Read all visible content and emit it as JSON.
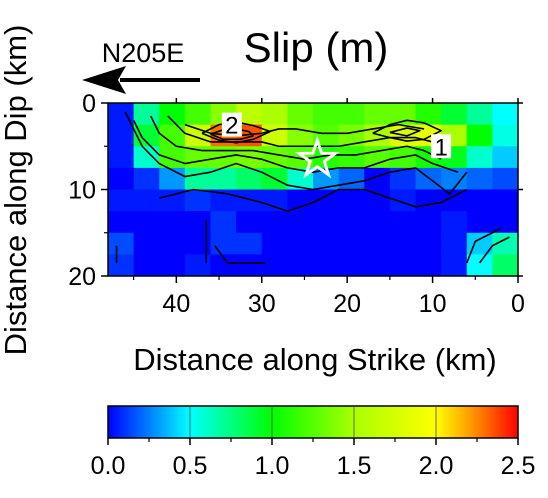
{
  "chart_data": {
    "type": "heatmap",
    "title": "Slip (m)",
    "direction_label": "N205E",
    "xlabel": "Distance along Strike (km)",
    "ylabel": "Distance along Dip (km)",
    "xlim": [
      48,
      0
    ],
    "ylim": [
      0,
      20
    ],
    "xticks": [
      40,
      30,
      20,
      10,
      0
    ],
    "yticks": [
      0,
      10,
      20
    ],
    "colorbar": {
      "label_values": [
        "0.0",
        "0.5",
        "1.0",
        "1.5",
        "2.0",
        "2.5"
      ],
      "range": [
        0,
        2.5
      ]
    },
    "annotations": [
      {
        "text": "2",
        "strike_km": 33.5,
        "dip_km": 2.5
      },
      {
        "text": "1",
        "strike_km": 9,
        "dip_km": 5
      }
    ],
    "hypocenter": {
      "strike_km": 23.5,
      "dip_km": 6.5
    },
    "grid": {
      "strike_edges_km": [
        48,
        45,
        42,
        39,
        36,
        33,
        30,
        27,
        24,
        21,
        18,
        15,
        12,
        9,
        6,
        3,
        0
      ],
      "dip_edges_km": [
        0,
        2.5,
        5,
        7.5,
        10,
        12.5,
        15,
        17.5,
        20
      ],
      "slip_m": [
        [
          0.05,
          0.7,
          1.0,
          1.2,
          1.4,
          1.6,
          1.5,
          1.3,
          1.2,
          1.2,
          1.3,
          1.3,
          1.1,
          0.9,
          0.7,
          0.5
        ],
        [
          0.05,
          0.9,
          1.2,
          1.7,
          2.3,
          2.35,
          1.7,
          1.4,
          1.25,
          1.35,
          1.5,
          1.8,
          1.85,
          1.5,
          1.0,
          0.55
        ],
        [
          0.05,
          0.6,
          1.2,
          1.3,
          1.3,
          1.35,
          1.3,
          1.25,
          1.1,
          1.15,
          1.25,
          1.2,
          1.05,
          0.95,
          0.6,
          0.4
        ],
        [
          0.0,
          0.1,
          0.3,
          0.7,
          0.7,
          0.8,
          0.9,
          0.6,
          0.3,
          0.2,
          0.0,
          0.1,
          0.2,
          0.25,
          0.2,
          0.15
        ],
        [
          0.05,
          0.05,
          0.05,
          0.1,
          0.05,
          0.05,
          0.05,
          0.0,
          0.0,
          0.0,
          0.0,
          0.05,
          0.0,
          0.0,
          0.0,
          0.0
        ],
        [
          0.0,
          0.0,
          0.0,
          0.0,
          0.1,
          0.0,
          0.0,
          0.0,
          0.0,
          0.0,
          0.0,
          0.0,
          0.0,
          0.05,
          0.0,
          0.0
        ],
        [
          0.15,
          0.0,
          0.0,
          0.0,
          0.1,
          0.1,
          0.0,
          0.0,
          0.0,
          0.0,
          0.0,
          0.0,
          0.0,
          0.05,
          0.4,
          0.65
        ],
        [
          0.1,
          0.0,
          0.0,
          0.05,
          0.0,
          0.0,
          0.0,
          0.0,
          0.0,
          0.0,
          0.0,
          0.0,
          0.0,
          0.05,
          0.5,
          0.8
        ]
      ]
    },
    "contours_km": [
      [
        [
          46,
          1
        ],
        [
          45,
          3
        ],
        [
          44,
          5
        ],
        [
          42,
          7
        ],
        [
          39,
          8.5
        ],
        [
          36,
          8
        ],
        [
          33,
          7
        ],
        [
          30,
          8
        ],
        [
          27,
          9.5
        ],
        [
          24,
          10
        ],
        [
          21,
          9.5
        ],
        [
          18,
          9
        ],
        [
          15,
          8
        ],
        [
          12,
          7.5
        ],
        [
          10,
          9
        ],
        [
          8,
          10.5
        ],
        [
          6,
          8
        ]
      ],
      [
        [
          45,
          2
        ],
        [
          44,
          4
        ],
        [
          42,
          6
        ],
        [
          39,
          7
        ],
        [
          36,
          6.5
        ],
        [
          33,
          6
        ],
        [
          30,
          6.5
        ],
        [
          27,
          7.5
        ],
        [
          24,
          8
        ],
        [
          21,
          7.5
        ],
        [
          18,
          7.5
        ],
        [
          15,
          6.5
        ],
        [
          12,
          6
        ],
        [
          10,
          7
        ],
        [
          7,
          8
        ]
      ],
      [
        [
          43,
          1.5
        ],
        [
          42,
          3.5
        ],
        [
          40,
          5
        ],
        [
          37,
          5.5
        ],
        [
          34,
          5.5
        ],
        [
          31,
          5.5
        ],
        [
          28,
          6
        ],
        [
          25,
          6.5
        ],
        [
          22,
          6
        ],
        [
          19,
          6
        ],
        [
          16,
          5.5
        ],
        [
          13,
          5
        ],
        [
          11,
          5.5
        ],
        [
          9,
          6.5
        ]
      ],
      [
        [
          41,
          1.5
        ],
        [
          39,
          3.5
        ],
        [
          36,
          4.5
        ],
        [
          33,
          4.5
        ],
        [
          30,
          4.5
        ],
        [
          28,
          5
        ],
        [
          26,
          5
        ],
        [
          24,
          5
        ],
        [
          21,
          5
        ],
        [
          18,
          4.5
        ],
        [
          15,
          4
        ],
        [
          12,
          4
        ],
        [
          10,
          4.5
        ]
      ],
      [
        [
          39,
          2.5
        ],
        [
          36,
          3.5
        ],
        [
          33,
          3.8
        ],
        [
          30,
          3.5
        ],
        [
          28,
          3
        ],
        [
          26,
          3
        ],
        [
          23,
          3.5
        ],
        [
          20,
          3.5
        ],
        [
          17,
          3
        ],
        [
          14,
          2.5
        ],
        [
          11,
          3
        ]
      ],
      [
        [
          37,
          3.5
        ],
        [
          35,
          2.5
        ],
        [
          33,
          2.2
        ],
        [
          31,
          2.6
        ],
        [
          29,
          3.3
        ],
        [
          31,
          4.2
        ],
        [
          33,
          4.6
        ],
        [
          35,
          4.3
        ],
        [
          37,
          3.5
        ]
      ],
      [
        [
          36,
          3.6
        ],
        [
          34.5,
          3.1
        ],
        [
          33,
          3.0
        ],
        [
          31.5,
          3.3
        ],
        [
          31,
          3.8
        ],
        [
          32.5,
          4.2
        ],
        [
          34.5,
          4.2
        ],
        [
          36,
          3.6
        ]
      ],
      [
        [
          17,
          3.5
        ],
        [
          15,
          2.5
        ],
        [
          13,
          2.0
        ],
        [
          11,
          2.3
        ],
        [
          9,
          3.2
        ],
        [
          11,
          4.2
        ],
        [
          13,
          4.4
        ],
        [
          15,
          4.0
        ],
        [
          17,
          3.5
        ]
      ],
      [
        [
          15,
          3.4
        ],
        [
          13,
          2.9
        ],
        [
          11.5,
          3.2
        ],
        [
          13,
          3.8
        ],
        [
          15,
          3.4
        ]
      ],
      [
        [
          42,
          11
        ],
        [
          38,
          10
        ],
        [
          34,
          10.5
        ],
        [
          30,
          11.5
        ],
        [
          27,
          12.5
        ],
        [
          24,
          11.5
        ],
        [
          21,
          10
        ],
        [
          18,
          10
        ],
        [
          15,
          11
        ],
        [
          12,
          12
        ],
        [
          9,
          11.5
        ],
        [
          6,
          10
        ]
      ],
      [
        [
          36.5,
          13.5
        ],
        [
          36.5,
          18.5
        ]
      ],
      [
        [
          35.5,
          16.5
        ],
        [
          34,
          18.5
        ],
        [
          29.5,
          18.5
        ]
      ],
      [
        [
          47,
          16.5
        ],
        [
          47,
          18.5
        ]
      ],
      [
        [
          6,
          18.5
        ],
        [
          5,
          16
        ],
        [
          2,
          14.5
        ]
      ],
      [
        [
          4.5,
          18.5
        ],
        [
          3,
          16.5
        ],
        [
          1,
          15.5
        ]
      ]
    ]
  }
}
